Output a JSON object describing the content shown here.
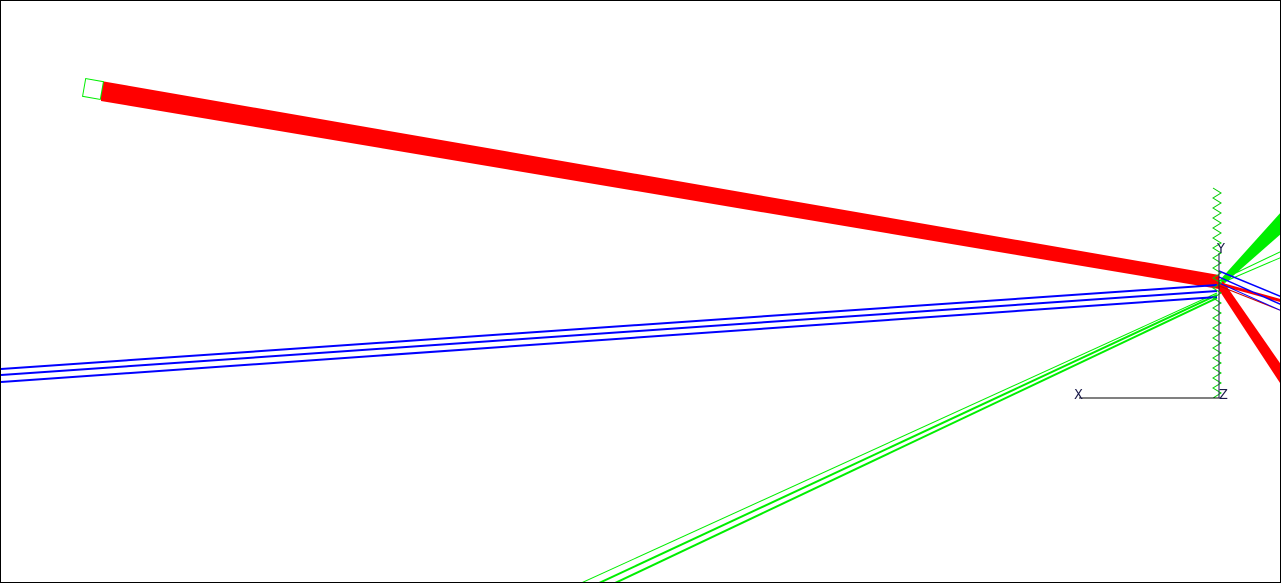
{
  "scene": {
    "background": "#ffffff",
    "colors": {
      "red_beam": "#ff0000",
      "blue_beam": "#0000ff",
      "green_beam": "#00ee00",
      "axis": "#000000"
    },
    "axes": {
      "x_label": "X",
      "y_label": "Y",
      "z_label": "Z"
    },
    "elements": [
      "source-aperture",
      "incident-red-beam",
      "diffraction-grating",
      "blue-diffracted-beams",
      "green-diffracted-beams",
      "axis-triad"
    ]
  }
}
